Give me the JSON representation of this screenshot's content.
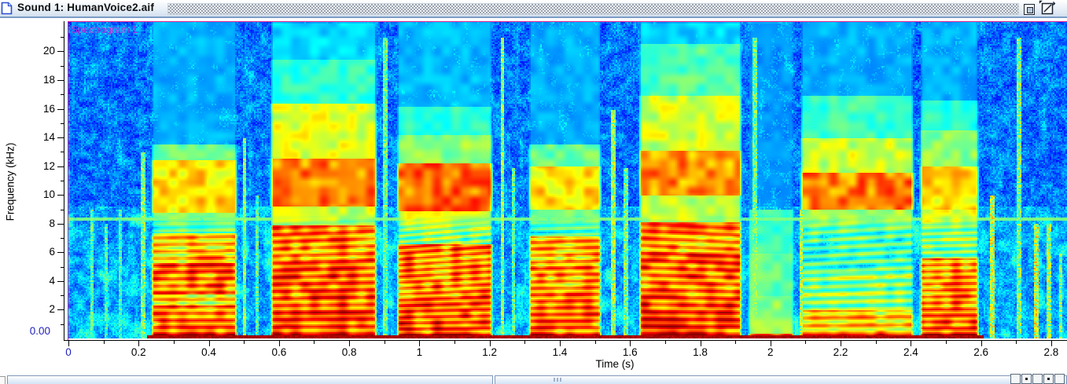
{
  "window": {
    "title": "Sound 1: HumanVoice2.aif",
    "icon": "document-icon",
    "buttons": {
      "collapse": "collapse-box",
      "zoom": "zoom-box"
    }
  },
  "colors": {
    "accent_blue": "#2222bb",
    "spectrogram_label_magenta": "#d62ad6",
    "plot_border_magenta": "#e0218f",
    "titlebar_border_blue": "#7b9cc4"
  },
  "chart_data": {
    "type": "heatmap",
    "title": "Spectrogram 1",
    "xlabel": "Time (s)",
    "ylabel": "Frequency (kHz)",
    "colormap": "jet",
    "grid": false,
    "x_range": [
      0,
      2.845
    ],
    "y_range": [
      0,
      22.05
    ],
    "x_ticks": [
      {
        "t": 0,
        "label": "0",
        "blue": true
      },
      {
        "t": 0.2,
        "label": "0.2"
      },
      {
        "t": 0.4,
        "label": "0.4"
      },
      {
        "t": 0.6,
        "label": "0.6"
      },
      {
        "t": 0.8,
        "label": "0.8"
      },
      {
        "t": 1,
        "label": "1"
      },
      {
        "t": 1.2,
        "label": "1.2"
      },
      {
        "t": 1.4,
        "label": "1.4"
      },
      {
        "t": 1.6,
        "label": "1.6"
      },
      {
        "t": 1.8,
        "label": "1.8"
      },
      {
        "t": 2,
        "label": "2"
      },
      {
        "t": 2.2,
        "label": "2.2"
      },
      {
        "t": 2.4,
        "label": "2.4"
      },
      {
        "t": 2.6,
        "label": "2.6"
      },
      {
        "t": 2.8,
        "label": "2.8"
      }
    ],
    "x_minor_step": 0.1,
    "y_ticks": [
      {
        "f": 20,
        "label": "20"
      },
      {
        "f": 18,
        "label": "18"
      },
      {
        "f": 16,
        "label": "16"
      },
      {
        "f": 14,
        "label": "14"
      },
      {
        "f": 12,
        "label": "12"
      },
      {
        "f": 10,
        "label": "10"
      },
      {
        "f": 8,
        "label": "8"
      },
      {
        "f": 6,
        "label": "6"
      },
      {
        "f": 4,
        "label": "4"
      },
      {
        "f": 2,
        "label": "2"
      }
    ],
    "y_minor_step": 1,
    "origin_labels": {
      "x": "0",
      "y": "0.00"
    },
    "hline_khz": 8.32,
    "bottom_band": {
      "t0": 0.222,
      "t1": 2.605,
      "f_max": 0.32,
      "v": 0.93
    },
    "segments": [
      {
        "t0": 0.225,
        "t1": 0.487,
        "h": {
          "df": 0.48,
          "bend": 0.05
        },
        "bands": [
          [
            0,
            0.35,
            0.95
          ],
          [
            0.35,
            2.3,
            0.88
          ],
          [
            2.3,
            3.1,
            0.75
          ],
          [
            3.1,
            5.3,
            0.87
          ],
          [
            5.3,
            7.4,
            0.8
          ],
          [
            7.4,
            8.8,
            0.52
          ],
          [
            8.8,
            12.5,
            0.66
          ],
          [
            12.5,
            13.6,
            0.48
          ],
          [
            13.6,
            22.05,
            0.3
          ]
        ]
      },
      {
        "t0": 0.565,
        "t1": 0.885,
        "h": {
          "df": 0.5,
          "bend": 0.12
        },
        "bands": [
          [
            0,
            0.35,
            0.96
          ],
          [
            0.35,
            3,
            0.9
          ],
          [
            3,
            5.6,
            0.89
          ],
          [
            5.6,
            7.9,
            0.84
          ],
          [
            7.9,
            9.2,
            0.58
          ],
          [
            9.2,
            12.6,
            0.76
          ],
          [
            12.6,
            16.4,
            0.6
          ],
          [
            16.4,
            19.5,
            0.42
          ],
          [
            19.5,
            22.05,
            0.34
          ]
        ]
      },
      {
        "t0": 0.925,
        "t1": 1.215,
        "h": {
          "df": 0.42,
          "bend": 0.3
        },
        "bands": [
          [
            0,
            0.35,
            0.96
          ],
          [
            0.35,
            3,
            0.9
          ],
          [
            3,
            6.6,
            0.87
          ],
          [
            6.6,
            8.9,
            0.6
          ],
          [
            8.9,
            12.3,
            0.78
          ],
          [
            12.3,
            14.2,
            0.52
          ],
          [
            14.2,
            16.2,
            0.42
          ],
          [
            16.2,
            22.05,
            0.31
          ]
        ]
      },
      {
        "t0": 1.3,
        "t1": 1.525,
        "h": {
          "df": 0.46,
          "bend": 0.1
        },
        "bands": [
          [
            0,
            0.35,
            0.94
          ],
          [
            0.35,
            2.6,
            0.86
          ],
          [
            2.6,
            5.1,
            0.84
          ],
          [
            5.1,
            7.1,
            0.8
          ],
          [
            7.1,
            9,
            0.5
          ],
          [
            9,
            12.1,
            0.66
          ],
          [
            12.1,
            13.6,
            0.48
          ],
          [
            13.6,
            22.05,
            0.3
          ]
        ]
      },
      {
        "t0": 1.615,
        "t1": 1.925,
        "h": {
          "df": 0.5,
          "bend": -0.15
        },
        "bands": [
          [
            0,
            0.35,
            0.96
          ],
          [
            0.35,
            3,
            0.9
          ],
          [
            3,
            6.1,
            0.89
          ],
          [
            6.1,
            8.1,
            0.83
          ],
          [
            8.1,
            10,
            0.58
          ],
          [
            10,
            13.1,
            0.74
          ],
          [
            13.1,
            17,
            0.58
          ],
          [
            17,
            20.6,
            0.46
          ],
          [
            20.6,
            22.05,
            0.34
          ]
        ]
      },
      {
        "t0": 1.925,
        "t1": 2.075,
        "bands": [
          [
            0,
            0.35,
            0.78
          ],
          [
            0.35,
            3,
            0.52
          ],
          [
            3,
            6,
            0.48
          ],
          [
            6,
            9,
            0.44
          ],
          [
            9,
            22.05,
            0.27
          ]
        ]
      },
      {
        "t0": 2.075,
        "t1": 2.415,
        "h": {
          "df": 0.55,
          "bend": 0.2
        },
        "bands": [
          [
            0,
            0.35,
            0.93
          ],
          [
            0.35,
            2,
            0.78
          ],
          [
            2,
            4.6,
            0.6
          ],
          [
            4.6,
            6.6,
            0.54
          ],
          [
            6.6,
            9,
            0.54
          ],
          [
            9,
            11.6,
            0.76
          ],
          [
            11.6,
            14,
            0.58
          ],
          [
            14,
            17,
            0.44
          ],
          [
            17,
            22.05,
            0.3
          ]
        ]
      },
      {
        "t0": 2.415,
        "t1": 2.6,
        "h": {
          "df": 0.44,
          "bend": 0.1
        },
        "bands": [
          [
            0,
            0.35,
            0.94
          ],
          [
            0.35,
            3,
            0.86
          ],
          [
            3,
            5.6,
            0.84
          ],
          [
            5.6,
            9,
            0.6
          ],
          [
            9,
            12.1,
            0.66
          ],
          [
            12.1,
            14.6,
            0.52
          ],
          [
            14.6,
            16.6,
            0.42
          ],
          [
            16.6,
            22.05,
            0.3
          ]
        ]
      }
    ],
    "vertical_streaks": [
      [
        0.065,
        9,
        0.46
      ],
      [
        0.105,
        8,
        0.44
      ],
      [
        0.145,
        9,
        0.44
      ],
      [
        0.21,
        13,
        0.5
      ],
      [
        0.5,
        14,
        0.52
      ],
      [
        0.535,
        10,
        0.46
      ],
      [
        0.9,
        21,
        0.48
      ],
      [
        1.235,
        21,
        0.52
      ],
      [
        1.265,
        12,
        0.46
      ],
      [
        1.55,
        16,
        0.55
      ],
      [
        1.585,
        12,
        0.5
      ],
      [
        1.952,
        21,
        0.48
      ],
      [
        2.085,
        9,
        0.55
      ],
      [
        2.63,
        10,
        0.58
      ],
      [
        2.705,
        21,
        0.5
      ],
      [
        2.755,
        8,
        0.6
      ],
      [
        2.79,
        8,
        0.55
      ],
      [
        2.825,
        6,
        0.5
      ]
    ]
  },
  "bottom_edge": {
    "panes": 2,
    "grip": "pane-grip",
    "toolbar_buttons": 5
  }
}
